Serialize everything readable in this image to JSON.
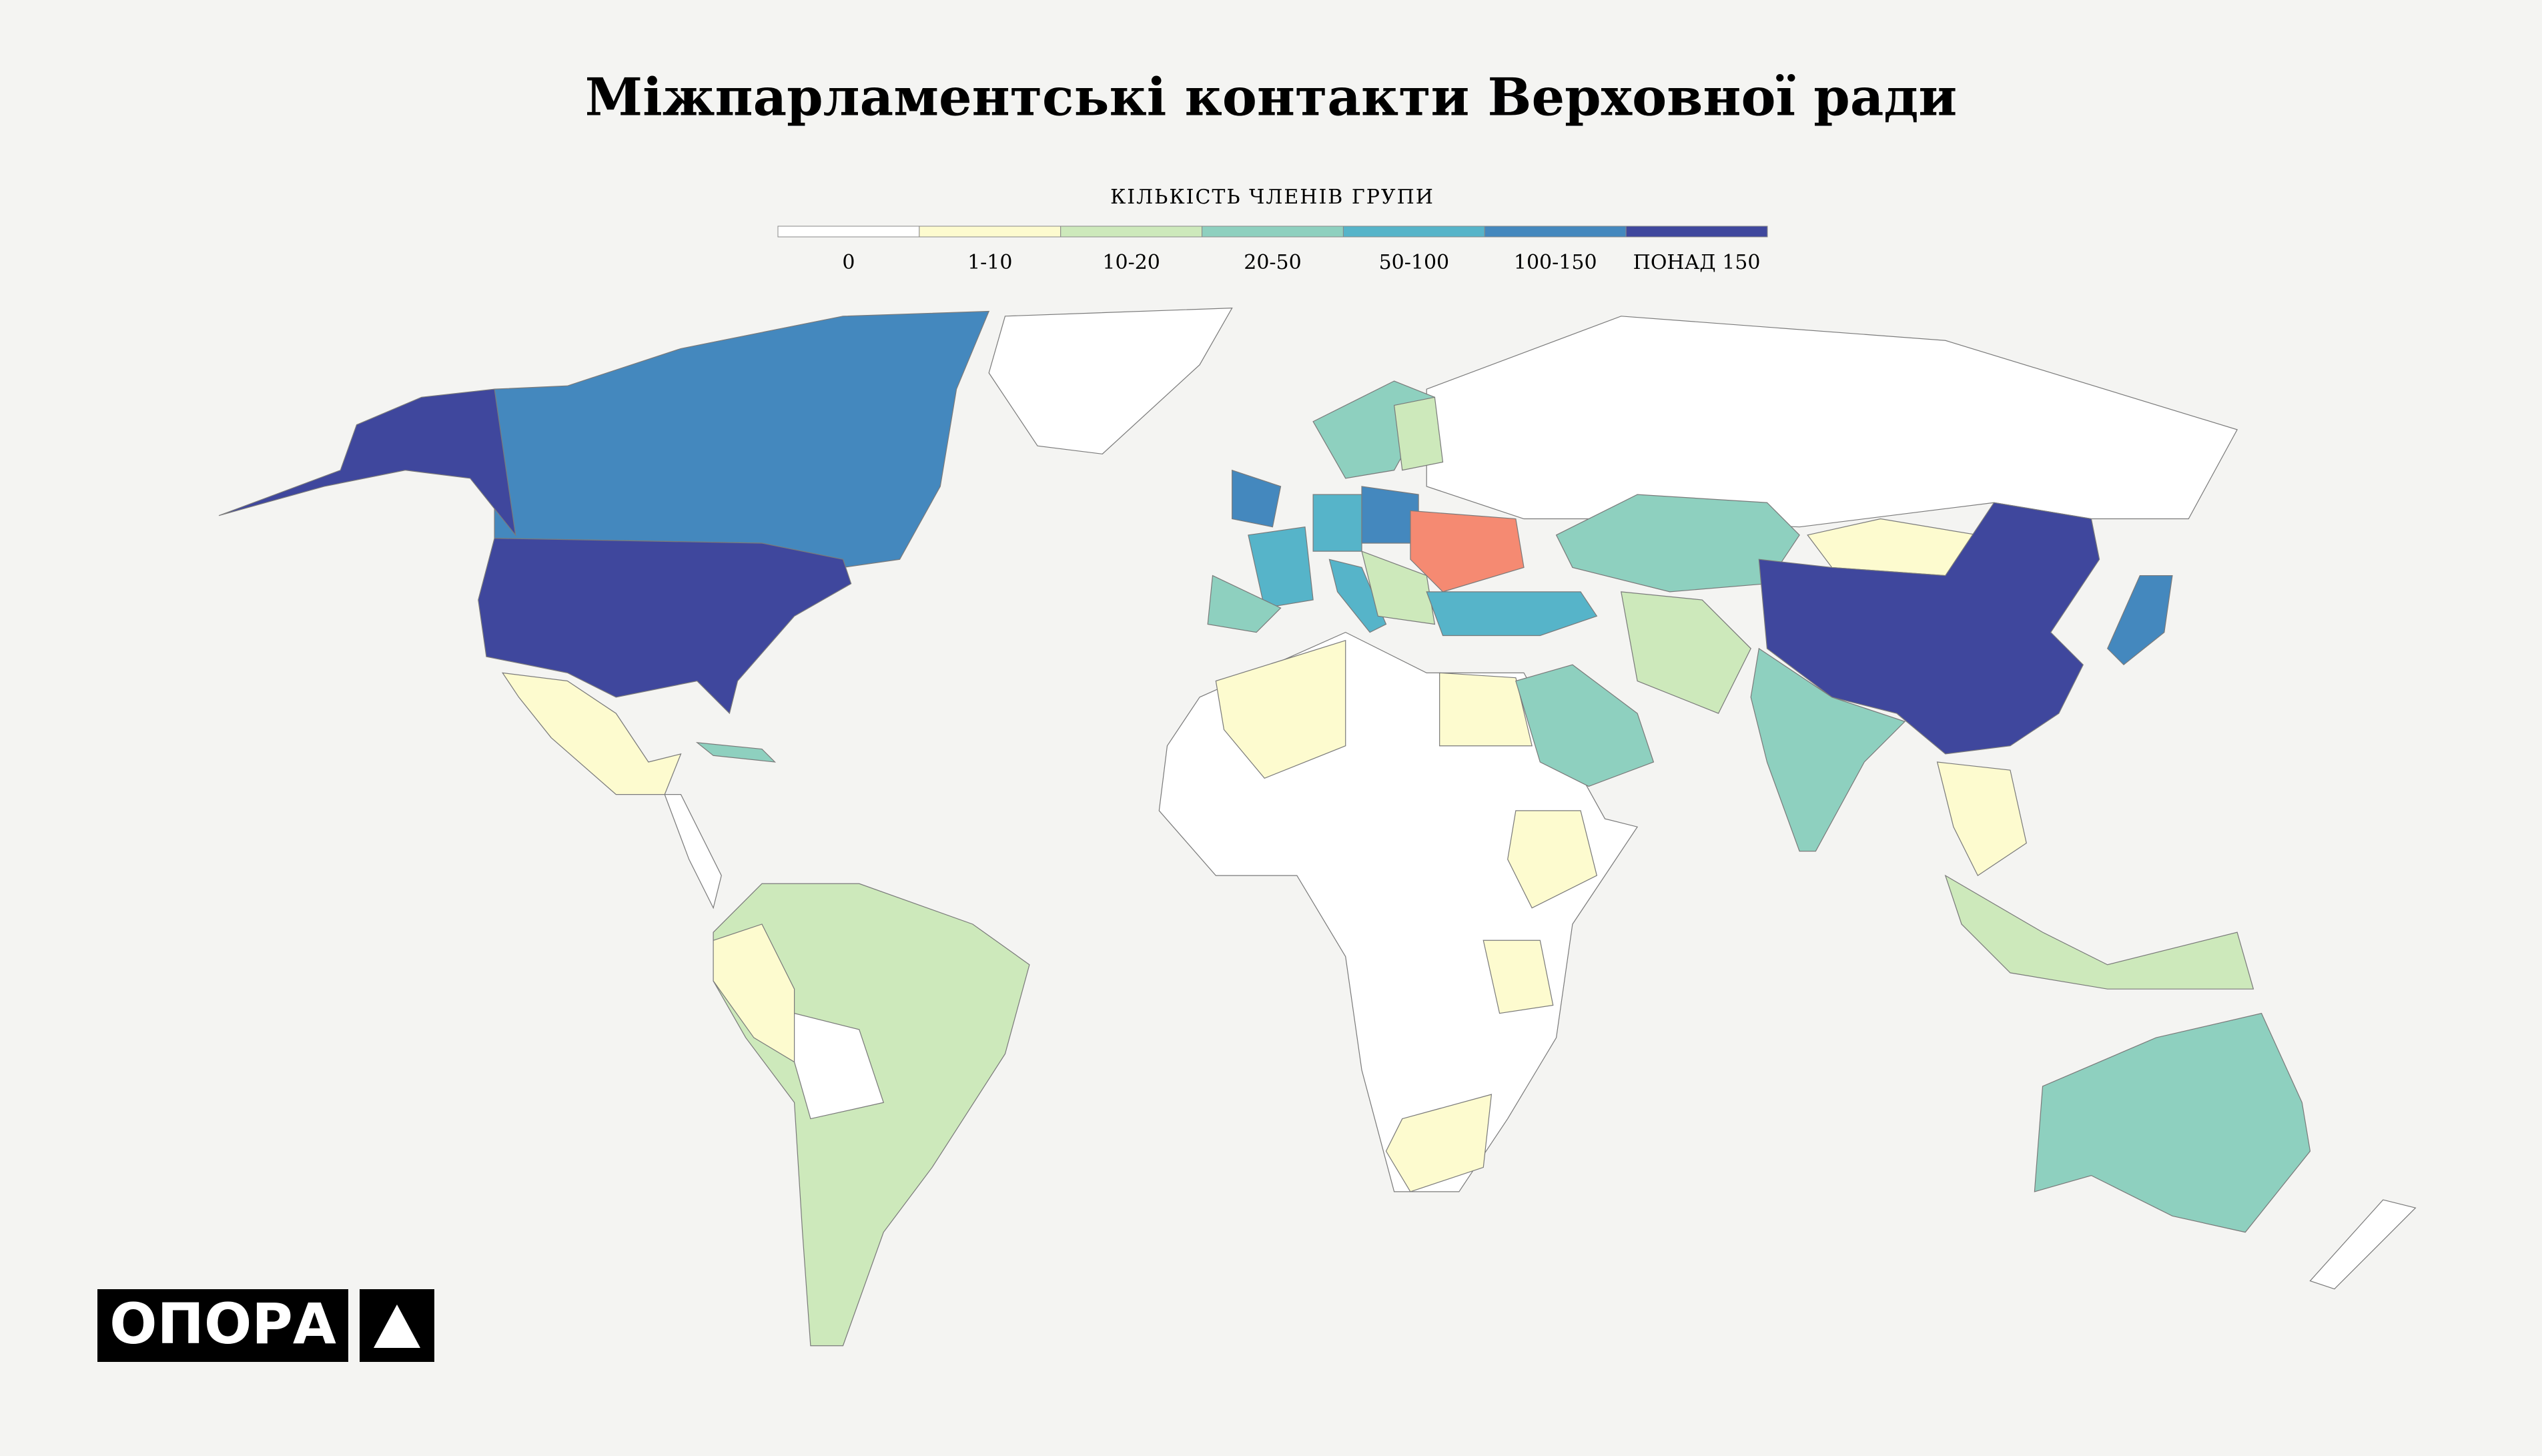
{
  "title": "Міжпарламентські контакти Верховної ради",
  "legend": {
    "title": "КІЛЬКІСТЬ ЧЛЕНІВ ГРУПИ",
    "items": [
      {
        "label": "0",
        "color": "#ffffff"
      },
      {
        "label": "1-10",
        "color": "#fdfbcf"
      },
      {
        "label": "10-20",
        "color": "#cde9bb"
      },
      {
        "label": "20-50",
        "color": "#8ed0bf"
      },
      {
        "label": "50-100",
        "color": "#56b4c9"
      },
      {
        "label": "100-150",
        "color": "#4488be"
      },
      {
        "label": "ПОНАД 150",
        "color": "#3f479d"
      }
    ]
  },
  "logo": "ОПОРА"
}
